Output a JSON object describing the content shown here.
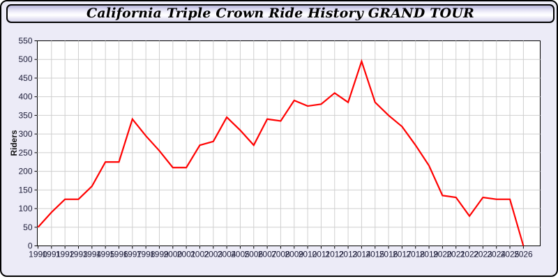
{
  "window": {
    "title": "California Triple Crown Ride History GRAND TOUR"
  },
  "chart_data": {
    "type": "line",
    "title": "California Triple Crown Ride History GRAND TOUR",
    "xlabel": "",
    "ylabel": "Riders",
    "x": [
      1990,
      1991,
      1992,
      1993,
      1994,
      1995,
      1996,
      1997,
      1998,
      1999,
      2000,
      2001,
      2002,
      2003,
      2004,
      2005,
      2006,
      2007,
      2008,
      2009,
      2010,
      2011,
      2012,
      2013,
      2014,
      2015,
      2016,
      2017,
      2018,
      2019,
      2020,
      2021,
      2022,
      2023,
      2024,
      2025,
      2026
    ],
    "x_tick_labels": [
      "1990",
      "1991",
      "1992",
      "1993",
      "1994",
      "1995",
      "1996",
      "1997",
      "1998",
      "1999",
      "2000",
      "2001",
      "2002",
      "2003",
      "2004",
      "2005",
      "2006",
      "2007",
      "2008",
      "2009",
      "2010",
      "2011",
      "2012",
      "2013",
      "2014",
      "2015",
      "2016",
      "2017",
      "2018",
      "2019",
      "2020",
      "2021",
      "2022",
      "2023",
      "2024",
      "2025",
      "2026"
    ],
    "y_tick_labels": [
      "0",
      "50",
      "100",
      "150",
      "200",
      "250",
      "300",
      "350",
      "400",
      "450",
      "500",
      "550"
    ],
    "ylim": [
      0,
      550
    ],
    "ytick_step": 50,
    "grid": true,
    "legend": "none",
    "series": [
      {
        "name": "Riders",
        "color": "#FF0000",
        "values": [
          50,
          90,
          125,
          125,
          160,
          225,
          225,
          340,
          295,
          255,
          210,
          210,
          270,
          280,
          345,
          310,
          270,
          340,
          335,
          390,
          375,
          380,
          410,
          385,
          495,
          385,
          350,
          320,
          270,
          215,
          135,
          130,
          80,
          130,
          125,
          125,
          0
        ]
      }
    ]
  },
  "colors": {
    "frame_background": "#ECEBF7",
    "plot_background": "#FFFFFF",
    "gridline": "#CFCFCF",
    "axis": "#000000",
    "line": "#FF0000"
  }
}
